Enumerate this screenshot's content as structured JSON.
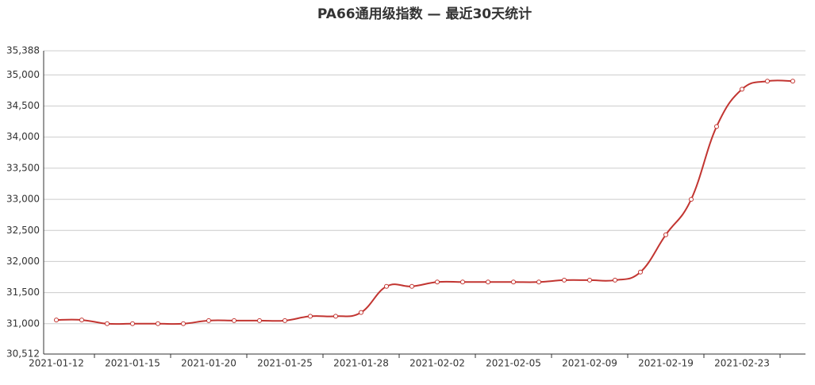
{
  "chart_data": {
    "type": "line",
    "title": "PA66通用级指数 — 最近30天统计",
    "categories": [
      "2021-01-12",
      null,
      null,
      "2021-01-15",
      null,
      null,
      "2021-01-20",
      null,
      null,
      "2021-01-25",
      null,
      null,
      "2021-01-28",
      null,
      null,
      "2021-02-02",
      null,
      null,
      "2021-02-05",
      null,
      null,
      "2021-02-09",
      null,
      null,
      "2021-02-19",
      null,
      null,
      "2021-02-23",
      null,
      null
    ],
    "series": [
      {
        "name": "PA66通用级指数",
        "color": "#c23531",
        "values": [
          31060,
          31060,
          31000,
          31000,
          31000,
          31000,
          31050,
          31050,
          31050,
          31050,
          31120,
          31120,
          31180,
          31600,
          31600,
          31670,
          31670,
          31670,
          31670,
          31670,
          31700,
          31700,
          31700,
          31830,
          32430,
          33000,
          34170,
          34770,
          34900,
          34900
        ]
      }
    ],
    "ylim": [
      30512,
      35388
    ],
    "yticks": [
      {
        "value": 30512,
        "label": "30,512"
      },
      {
        "value": 31000,
        "label": "31,000"
      },
      {
        "value": 31500,
        "label": "31,500"
      },
      {
        "value": 32000,
        "label": "32,000"
      },
      {
        "value": 32500,
        "label": "32,500"
      },
      {
        "value": 33000,
        "label": "33,000"
      },
      {
        "value": 33500,
        "label": "33,500"
      },
      {
        "value": 34000,
        "label": "34,000"
      },
      {
        "value": 34500,
        "label": "34,500"
      },
      {
        "value": 35000,
        "label": "35,000"
      },
      {
        "value": 35388,
        "label": "35,388"
      }
    ],
    "grid": true
  }
}
